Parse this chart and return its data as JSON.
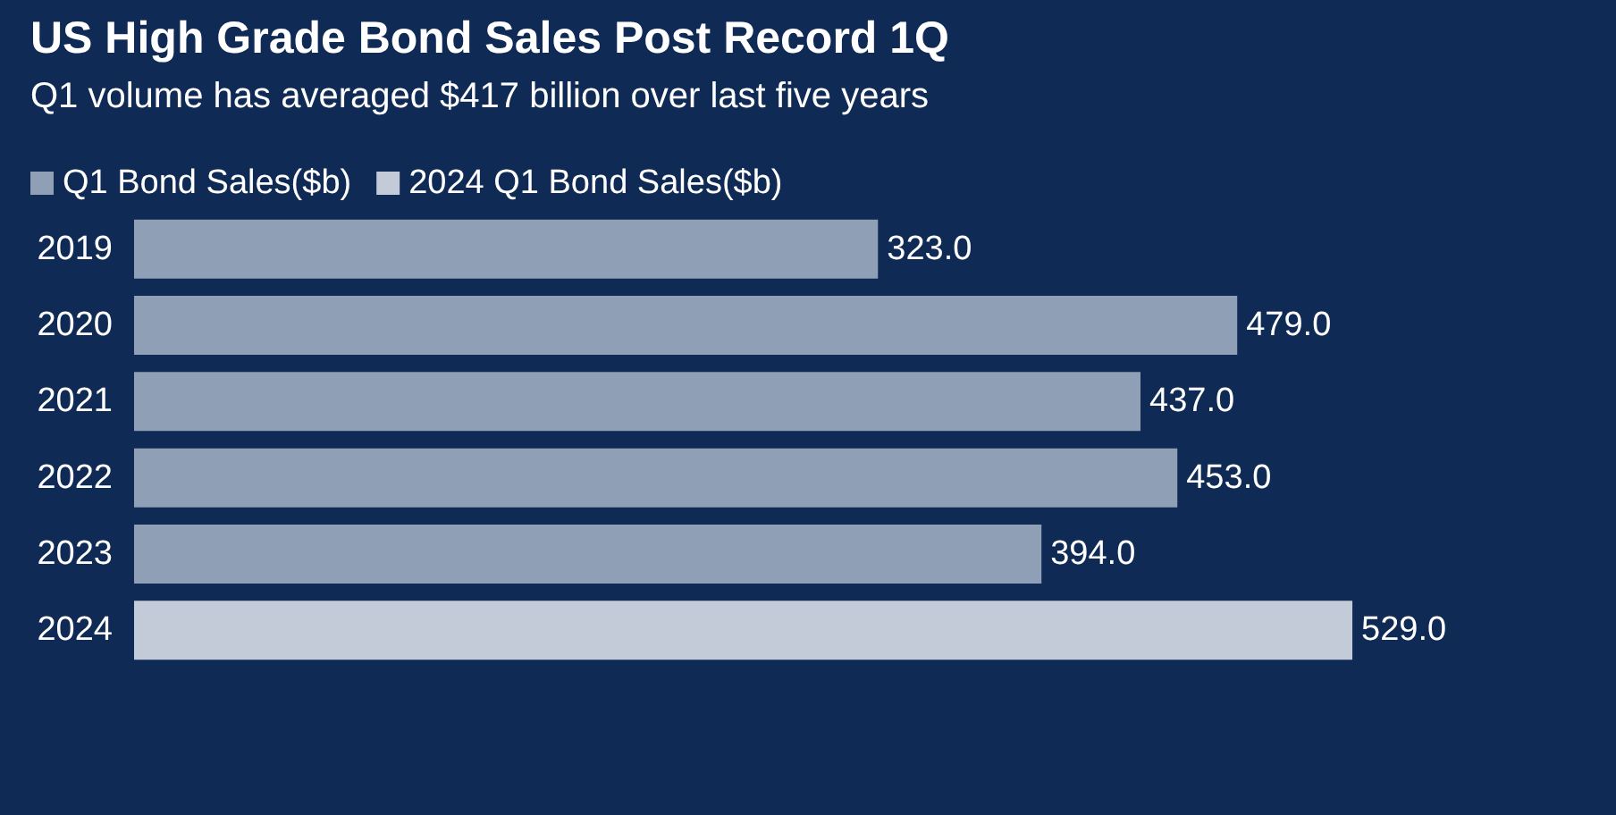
{
  "chart_data": {
    "type": "bar",
    "orientation": "horizontal",
    "title": "US High Grade Bond Sales Post Record 1Q",
    "subtitle": "Q1 volume has averaged $417 billion over last five years",
    "categories": [
      "2019",
      "2020",
      "2021",
      "2022",
      "2023",
      "2024"
    ],
    "series": [
      {
        "name": "Q1 Bond Sales($b)",
        "color": "#8e9fb6",
        "values": [
          323,
          479,
          437,
          453,
          394,
          null
        ],
        "value_labels": [
          "323.0",
          "479.0",
          "437.0",
          "453.0",
          "394.0",
          null
        ]
      },
      {
        "name": "2024 Q1 Bond Sales($b)",
        "color": "#c3cbd8",
        "values": [
          null,
          null,
          null,
          null,
          null,
          529
        ],
        "value_labels": [
          null,
          null,
          null,
          null,
          null,
          "529.0"
        ]
      }
    ],
    "legend": "top left"
  }
}
